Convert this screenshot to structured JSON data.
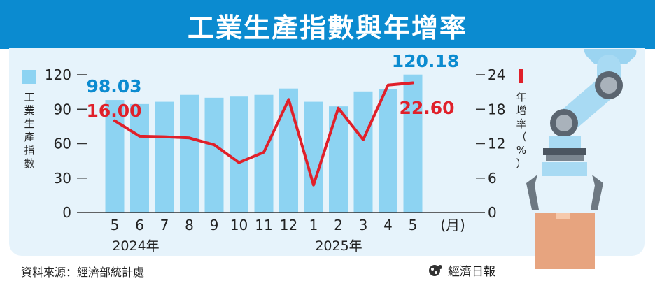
{
  "title": "工業生產指數與年增率",
  "left_axis_title_chars": [
    "工",
    "業",
    "生",
    "產",
    "指",
    "數"
  ],
  "right_axis_title_chars": [
    "年",
    "增",
    "率",
    "（",
    "%",
    "）"
  ],
  "month_unit": "(月)",
  "year_labels": [
    "2024年",
    "2025年"
  ],
  "source": "資料來源：經濟部統計處",
  "brand": "經濟日報",
  "colors": {
    "bar": "#8dd3f2",
    "line": "#e0202a",
    "accent_blue": "#0b8bd0",
    "panel": "#e6f3fb"
  },
  "chart_data": {
    "type": "bar+line",
    "categories": [
      "5",
      "6",
      "7",
      "8",
      "9",
      "10",
      "11",
      "12",
      "1",
      "2",
      "3",
      "4",
      "5"
    ],
    "series": [
      {
        "axis": "left",
        "type": "bar",
        "values": [
          98.03,
          94.5,
          96.5,
          102.5,
          100.0,
          101.0,
          102.5,
          108.0,
          96.5,
          92.5,
          105.5,
          107.5,
          120.18
        ]
      },
      {
        "axis": "right",
        "type": "line",
        "values": [
          16.0,
          13.3,
          13.2,
          13.0,
          11.8,
          8.7,
          10.5,
          19.7,
          4.8,
          18.2,
          12.7,
          22.2,
          22.6
        ]
      }
    ],
    "y_left": {
      "ticks": [
        "0",
        "30",
        "60",
        "90",
        "120"
      ],
      "ylim": [
        0,
        120
      ]
    },
    "y_right": {
      "ticks": [
        "0",
        "6",
        "12",
        "18",
        "24"
      ],
      "ylim": [
        0,
        24
      ]
    },
    "annotations": {
      "first_bar": "98.03",
      "last_bar": "120.18",
      "first_line": "16.00",
      "last_line": "22.60"
    }
  }
}
